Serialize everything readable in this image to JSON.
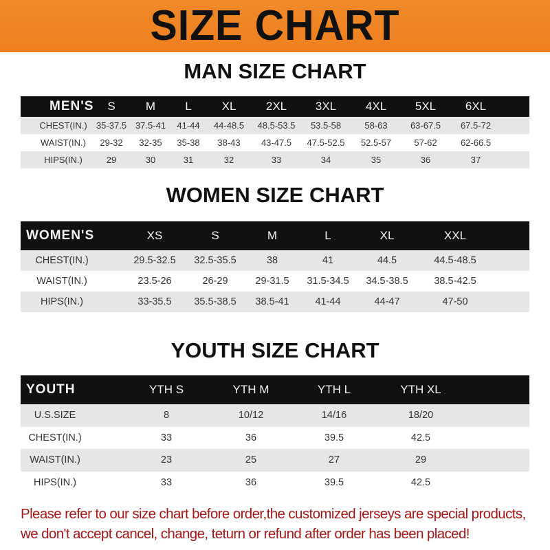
{
  "banner_title": "SIZE CHART",
  "tables": [
    {
      "title": "MAN SIZE CHART",
      "header": [
        "MEN'S",
        "S",
        "M",
        "L",
        "XL",
        "2XL",
        "3XL",
        "4XL",
        "5XL",
        "6XL"
      ],
      "rows": [
        [
          "CHEST(IN.)",
          "35-37.5",
          "37.5-41",
          "41-44",
          "44-48.5",
          "48.5-53.5",
          "53.5-58",
          "58-63",
          "63-67.5",
          "67.5-72"
        ],
        [
          "WAIST(IN.)",
          "29-32",
          "32-35",
          "35-38",
          "38-43",
          "43-47.5",
          "47.5-52.5",
          "52.5-57",
          "57-62",
          "62-66.5"
        ],
        [
          "HIPS(IN.)",
          "29",
          "30",
          "31",
          "32",
          "33",
          "34",
          "35",
          "36",
          "37"
        ]
      ]
    },
    {
      "title": "WOMEN SIZE CHART",
      "header": [
        "WOMEN'S",
        "XS",
        "S",
        "M",
        "L",
        "XL",
        "XXL"
      ],
      "rows": [
        [
          "CHEST(IN.)",
          "29.5-32.5",
          "32.5-35.5",
          "38",
          "41",
          "44.5",
          "44.5-48.5"
        ],
        [
          "WAIST(IN.)",
          "23.5-26",
          "26-29",
          "29-31.5",
          "31.5-34.5",
          "34.5-38.5",
          "38.5-42.5"
        ],
        [
          "HIPS(IN.)",
          "33-35.5",
          "35.5-38.5",
          "38.5-41",
          "41-44",
          "44-47",
          "47-50"
        ]
      ]
    },
    {
      "title": "YOUTH SIZE CHART",
      "header": [
        "YOUTH",
        "YTH S",
        "YTH M",
        "YTH L",
        "YTH XL"
      ],
      "rows": [
        [
          "U.S.SIZE",
          "8",
          "10/12",
          "14/16",
          "18/20"
        ],
        [
          "CHEST(IN.)",
          "33",
          "36",
          "39.5",
          "42.5"
        ],
        [
          "WAIST(IN.)",
          "23",
          "25",
          "27",
          "29"
        ],
        [
          "HIPS(IN.)",
          "33",
          "36",
          "39.5",
          "42.5"
        ]
      ]
    }
  ],
  "note": "Please refer to our size chart before order,the customized jerseys are special products, we don't accept cancel, change, teturn or refund after order has been placed!",
  "colors": {
    "banner": "#ef8324",
    "header_row": "#111111",
    "shaded_row": "#e6e6e6",
    "note": "#a01818"
  }
}
